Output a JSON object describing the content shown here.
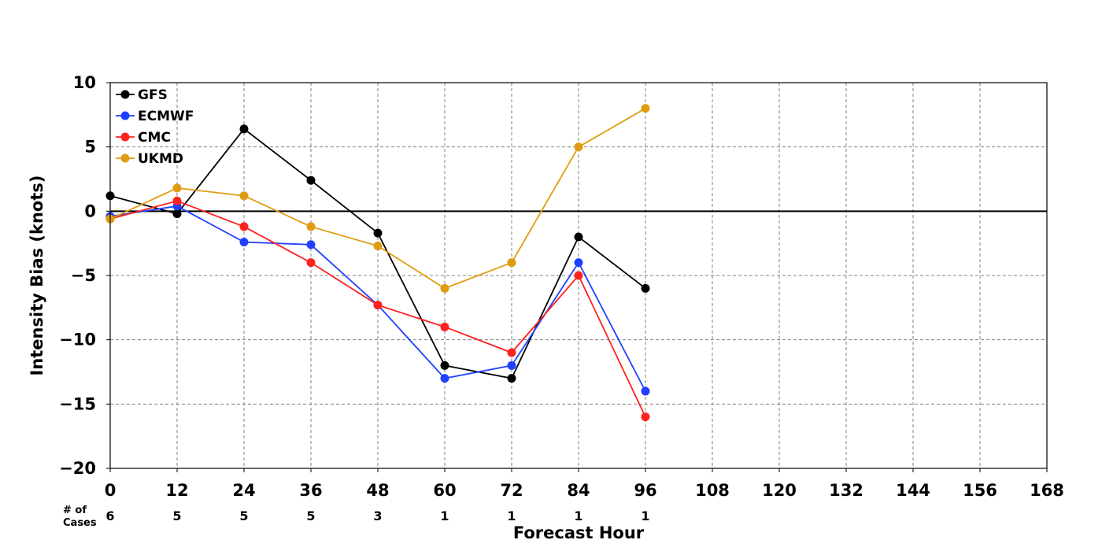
{
  "chart_data": {
    "type": "line",
    "title": "",
    "xlabel": "Forecast Hour",
    "ylabel": "Intensity Bias (knots)",
    "xlim": [
      0,
      168
    ],
    "ylim": [
      -20,
      10
    ],
    "x_ticks": [
      0,
      12,
      24,
      36,
      48,
      60,
      72,
      84,
      96,
      108,
      120,
      132,
      144,
      156,
      168
    ],
    "x_tick_labels": [
      "0",
      "12",
      "24",
      "36",
      "48",
      "60",
      "72",
      "84",
      "96",
      "108",
      "120",
      "132",
      "144",
      "156",
      "168"
    ],
    "y_ticks": [
      -20,
      -15,
      -10,
      -5,
      0,
      5,
      10
    ],
    "y_tick_labels": [
      "−20",
      "−15",
      "−10",
      "−5",
      "0",
      "5",
      "10"
    ],
    "grid": true,
    "legend_position": "top-left",
    "zero_line": true,
    "x": [
      0,
      12,
      24,
      36,
      48,
      60,
      72,
      84,
      96
    ],
    "series": [
      {
        "name": "GFS",
        "color": "#000000",
        "values": [
          1.2,
          -0.2,
          6.4,
          2.4,
          -1.7,
          -12,
          -13,
          -2,
          -6
        ]
      },
      {
        "name": "ECMWF",
        "color": "#2040ff",
        "values": [
          -0.4,
          0.4,
          -2.4,
          -2.6,
          -7.3,
          -13,
          -12,
          -4,
          -14
        ]
      },
      {
        "name": "CMC",
        "color": "#ff2020",
        "values": [
          -0.6,
          0.8,
          -1.2,
          -4,
          -7.3,
          -9,
          -11,
          -5,
          -16
        ]
      },
      {
        "name": "UKMD",
        "color": "#e09c10",
        "values": [
          -0.6,
          1.8,
          1.2,
          -1.2,
          -2.7,
          -6,
          -4,
          5,
          8
        ]
      }
    ],
    "cases": {
      "label_line1": "# of",
      "label_line2": "Cases",
      "x": [
        0,
        12,
        24,
        36,
        48,
        60,
        72,
        84,
        96
      ],
      "values": [
        "6",
        "5",
        "5",
        "5",
        "3",
        "1",
        "1",
        "1",
        "1"
      ]
    }
  }
}
